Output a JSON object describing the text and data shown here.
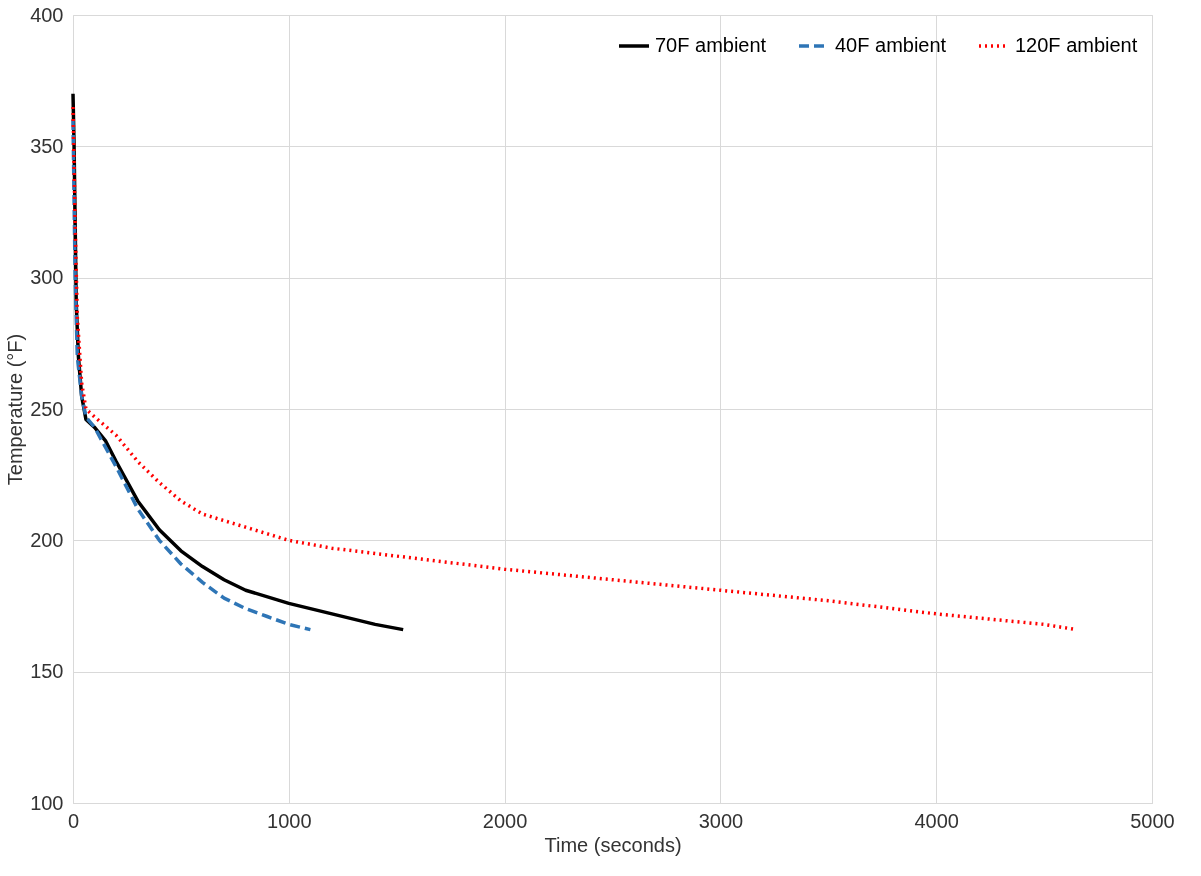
{
  "chart_data": {
    "type": "line",
    "xlabel": "Time (seconds)",
    "ylabel": "Temperature (°F)",
    "xlim": [
      0,
      5000
    ],
    "xticks": [
      0,
      1000,
      2000,
      3000,
      4000,
      5000
    ],
    "ylim": [
      100,
      400
    ],
    "yticks": [
      100,
      150,
      200,
      250,
      300,
      350,
      400
    ],
    "grid": true,
    "legend": "top right",
    "marker": "none",
    "series": [
      {
        "name": "70F ambient",
        "color": "#000000",
        "line_style": "solid",
        "x": [
          0,
          5,
          10,
          15,
          25,
          40,
          60,
          100,
          150,
          200,
          300,
          400,
          500,
          600,
          700,
          800,
          1000,
          1200,
          1400,
          1530
        ],
        "values": [
          370,
          350,
          320,
          290,
          270,
          255,
          246,
          243,
          238,
          230,
          215,
          204,
          196,
          190,
          185,
          181,
          176,
          172,
          168,
          166
        ]
      },
      {
        "name": "40F ambient",
        "color": "#2e75b6",
        "line_style": "dashed",
        "x": [
          0,
          10,
          20,
          40,
          60,
          100,
          200,
          300,
          400,
          500,
          600,
          700,
          800,
          900,
          1000,
          1100
        ],
        "values": [
          360,
          300,
          270,
          255,
          247,
          243,
          228,
          212,
          200,
          191,
          184,
          178,
          174,
          171,
          168,
          166
        ]
      },
      {
        "name": "120F ambient",
        "color": "#ff0000",
        "line_style": "dotted",
        "x": [
          0,
          10,
          20,
          40,
          60,
          100,
          200,
          300,
          400,
          500,
          600,
          800,
          1000,
          1200,
          1500,
          2000,
          2500,
          3000,
          3500,
          4000,
          4500,
          4650
        ],
        "values": [
          365,
          320,
          285,
          260,
          250,
          247,
          240,
          230,
          222,
          215,
          210,
          205,
          200,
          197,
          194,
          189,
          185,
          181,
          177,
          172,
          168,
          166
        ]
      }
    ]
  }
}
